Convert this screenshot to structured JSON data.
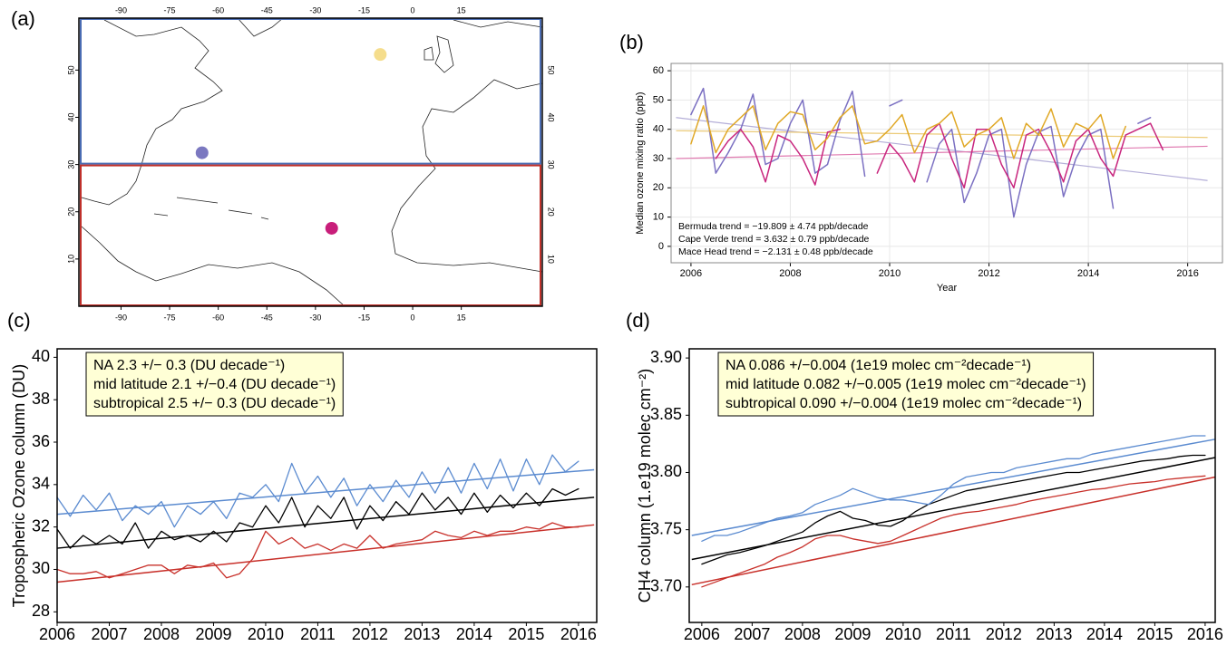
{
  "chart_data": [
    {
      "type": "map",
      "label": "(a)",
      "xlim": [
        -103,
        40
      ],
      "ylim": [
        0,
        61
      ],
      "xticks": [
        -90,
        -75,
        -60,
        -45,
        -30,
        -15,
        0,
        15
      ],
      "yticks": [
        10,
        20,
        30,
        40,
        50
      ],
      "regions": [
        {
          "color": "#4a6cb3",
          "lat": [
            30,
            61
          ]
        },
        {
          "color": "#c0302a",
          "lat": [
            0,
            30
          ]
        }
      ],
      "points": [
        {
          "x": -65,
          "y": 32.5,
          "color": "#7b78c0"
        },
        {
          "x": -25,
          "y": 16.5,
          "color": "#c81e7a"
        },
        {
          "x": -10,
          "y": 53.3,
          "color": "#f5dd8c"
        }
      ]
    },
    {
      "type": "line",
      "label": "(b)",
      "xlabel": "Year",
      "ylabel": "Median ozone mixing ratio (ppb)",
      "xlim": [
        2005.6,
        2016.7
      ],
      "ylim": [
        -5.6,
        62.5
      ],
      "xticks": [
        2006,
        2008,
        2010,
        2012,
        2014,
        2016
      ],
      "yticks": [
        0,
        10,
        20,
        30,
        40,
        50,
        60
      ],
      "grid": true,
      "legend": "bottom-left",
      "x": [
        2006,
        2006.25,
        2006.5,
        2006.75,
        2007,
        2007.25,
        2007.5,
        2007.75,
        2008,
        2008.25,
        2008.5,
        2008.75,
        2009,
        2009.25,
        2009.5,
        2009.75,
        2010,
        2010.25,
        2010.5,
        2010.75,
        2011,
        2011.25,
        2011.5,
        2011.75,
        2012,
        2012.25,
        2012.5,
        2012.75,
        2013,
        2013.25,
        2013.5,
        2013.75,
        2014,
        2014.25,
        2014.5,
        2014.75,
        2015,
        2015.25,
        2015.5,
        2015.75
      ],
      "trend_x": [
        2005.7,
        2016.4
      ],
      "series": [
        {
          "name": "Bermuda trend = −19.809 ± 4.74 ppb/decade",
          "color": "#7b70c2",
          "trend_color": "#b4aed8",
          "trend": [
            44,
            22.5
          ],
          "values": [
            45,
            54,
            25,
            32,
            40,
            52,
            28,
            30,
            42,
            50,
            25,
            28,
            43,
            53,
            24,
            null,
            48,
            50,
            null,
            22,
            35,
            40,
            15,
            25,
            38,
            40,
            10,
            28,
            39,
            41,
            17,
            30,
            38,
            40,
            13,
            null,
            42,
            44,
            null,
            26
          ]
        },
        {
          "name": "Cape Verde trend = 3.632 ± 0.79 ppb/decade",
          "color": "#c8267e",
          "trend_color": "#e07ab0",
          "trend": [
            30,
            34.2
          ],
          "values": [
            null,
            null,
            30,
            36,
            40,
            34,
            22,
            38,
            36,
            30,
            21,
            39,
            40,
            null,
            null,
            25,
            35,
            30,
            22,
            38,
            42,
            30,
            20,
            40,
            40,
            28,
            20,
            38,
            40,
            32,
            22,
            36,
            40,
            30,
            24,
            38,
            40,
            42,
            33,
            null
          ]
        },
        {
          "name": "Mace Head trend = −2.131 ± 0.48 ppb/decade",
          "color": "#e0a826",
          "trend_color": "#eccb78",
          "trend": [
            39.5,
            37.2
          ],
          "values": [
            35,
            48,
            32,
            40,
            44,
            48,
            33,
            42,
            46,
            45,
            33,
            37,
            44,
            48,
            35,
            36,
            40,
            45,
            32,
            40,
            42,
            46,
            34,
            38,
            40,
            44,
            30,
            42,
            38,
            47,
            34,
            42,
            40,
            45,
            30,
            41,
            null,
            null,
            null,
            null
          ]
        }
      ]
    },
    {
      "type": "line",
      "label": "(c)",
      "ylabel": "Tropospheric Ozone column (DU)",
      "xlim": [
        2006,
        2016.35
      ],
      "ylim": [
        27.5,
        40.4
      ],
      "xticks": [
        2006,
        2007,
        2008,
        2009,
        2010,
        2011,
        2012,
        2013,
        2014,
        2015,
        2016
      ],
      "yticks": [
        28,
        30,
        32,
        34,
        36,
        38,
        40
      ],
      "legend": "top-left",
      "x": [
        2006,
        2006.25,
        2006.5,
        2006.75,
        2007,
        2007.25,
        2007.5,
        2007.75,
        2008,
        2008.25,
        2008.5,
        2008.75,
        2009,
        2009.25,
        2009.5,
        2009.75,
        2010,
        2010.25,
        2010.5,
        2010.75,
        2011,
        2011.25,
        2011.5,
        2011.75,
        2012,
        2012.25,
        2012.5,
        2012.75,
        2013,
        2013.25,
        2013.5,
        2013.75,
        2014,
        2014.25,
        2014.5,
        2014.75,
        2015,
        2015.25,
        2015.5,
        2015.75,
        2016
      ],
      "trend_x": [
        2006,
        2016.3
      ],
      "series": [
        {
          "name": "NA 2.3 +/− 0.3 (DU decade⁻¹)",
          "color": "#000000",
          "trend_color": "#000000",
          "trend": [
            31.0,
            33.4
          ],
          "values": [
            31.9,
            31.0,
            31.6,
            31.2,
            31.6,
            31.2,
            32.2,
            31.0,
            31.8,
            31.4,
            31.6,
            31.3,
            31.8,
            31.3,
            32.2,
            32.0,
            33.0,
            32.2,
            33.4,
            32.0,
            33.0,
            32.4,
            33.4,
            31.9,
            33.0,
            32.3,
            33.2,
            32.6,
            33.6,
            32.8,
            33.4,
            32.6,
            33.6,
            32.7,
            33.5,
            32.9,
            33.6,
            33.0,
            33.8,
            33.5,
            33.8
          ]
        },
        {
          "name": "mid latitude 2.1 +/−0.4 (DU decade⁻¹)",
          "color": "#5b8bd0",
          "trend_color": "#5b8bd0",
          "trend": [
            32.6,
            34.7
          ],
          "values": [
            33.4,
            32.5,
            33.5,
            32.8,
            33.6,
            32.3,
            33.0,
            32.6,
            33.2,
            32.0,
            33.0,
            32.6,
            33.2,
            32.4,
            33.6,
            33.4,
            34.0,
            33.2,
            35.0,
            33.6,
            34.4,
            33.4,
            34.3,
            33.0,
            34.0,
            33.2,
            34.2,
            33.4,
            34.6,
            33.6,
            34.8,
            33.6,
            35.0,
            33.8,
            35.2,
            33.7,
            35.2,
            34.0,
            35.4,
            34.6,
            35.1
          ]
        },
        {
          "name": "subtropical 2.5 +/− 0.3 (DU decade⁻¹)",
          "color": "#c8302a",
          "trend_color": "#c8302a",
          "trend": [
            29.4,
            32.1
          ],
          "values": [
            30.0,
            29.8,
            29.8,
            29.9,
            29.6,
            29.8,
            30.0,
            30.2,
            30.2,
            29.8,
            30.2,
            30.1,
            30.3,
            29.6,
            29.8,
            30.5,
            31.8,
            31.2,
            31.5,
            31.0,
            31.2,
            30.9,
            31.2,
            31.0,
            31.6,
            31.0,
            31.2,
            31.3,
            31.4,
            31.8,
            31.6,
            31.5,
            31.8,
            31.6,
            31.8,
            31.8,
            32.0,
            31.9,
            32.2,
            32.0,
            32.0
          ]
        }
      ]
    },
    {
      "type": "line",
      "label": "(d)",
      "ylabel": "CH4 column (1.e19 molec cm⁻²)",
      "xlim": [
        2005.75,
        2016.2
      ],
      "ylim": [
        3.669,
        3.908
      ],
      "xticks": [
        2006,
        2007,
        2008,
        2009,
        2010,
        2011,
        2012,
        2013,
        2014,
        2015,
        2016
      ],
      "yticks": [
        {
          "value": 3.7,
          "label": "3.70"
        },
        3.75,
        {
          "value": 3.8,
          "label": "3.80"
        },
        3.85,
        {
          "value": 3.9,
          "label": "3.90"
        }
      ],
      "legend": "top-left",
      "x": [
        2006,
        2006.25,
        2006.5,
        2006.75,
        2007,
        2007.25,
        2007.5,
        2007.75,
        2008,
        2008.25,
        2008.5,
        2008.75,
        2009,
        2009.25,
        2009.5,
        2009.75,
        2010,
        2010.25,
        2010.5,
        2010.75,
        2011,
        2011.25,
        2011.5,
        2011.75,
        2012,
        2012.25,
        2012.5,
        2012.75,
        2013,
        2013.25,
        2013.5,
        2013.75,
        2014,
        2014.25,
        2014.5,
        2014.75,
        2015,
        2015.25,
        2015.5,
        2015.75,
        2016
      ],
      "trend_x": [
        2005.8,
        2016.2
      ],
      "series": [
        {
          "name": "NA 0.086 +/−0.004 (1e19 molec cm⁻²decade⁻¹)",
          "color": "#000000",
          "trend_color": "#000000",
          "trend": [
            3.724,
            3.813
          ],
          "values": [
            3.72,
            3.724,
            3.728,
            3.73,
            3.733,
            3.736,
            3.74,
            3.744,
            3.748,
            3.756,
            3.762,
            3.766,
            3.76,
            3.758,
            3.754,
            3.753,
            3.758,
            3.766,
            3.772,
            3.776,
            3.78,
            3.784,
            3.786,
            3.788,
            3.79,
            3.792,
            3.794,
            3.796,
            3.798,
            3.8,
            3.8,
            3.802,
            3.804,
            3.806,
            3.808,
            3.81,
            3.811,
            3.812,
            3.814,
            3.815,
            3.815
          ]
        },
        {
          "name": "mid latitude 0.082 +/−0.005 (1e19 molec cm⁻²decade⁻¹)",
          "color": "#5b8bd0",
          "trend_color": "#5b8bd0",
          "trend": [
            3.745,
            3.829
          ],
          "values": [
            3.74,
            3.745,
            3.745,
            3.748,
            3.752,
            3.756,
            3.76,
            3.762,
            3.765,
            3.772,
            3.776,
            3.78,
            3.786,
            3.782,
            3.778,
            3.776,
            3.776,
            3.774,
            3.772,
            3.78,
            3.79,
            3.796,
            3.798,
            3.8,
            3.8,
            3.804,
            3.806,
            3.808,
            3.81,
            3.812,
            3.812,
            3.816,
            3.818,
            3.82,
            3.822,
            3.824,
            3.826,
            3.828,
            3.83,
            3.832,
            3.832
          ]
        },
        {
          "name": "subtropical 0.090 +/−0.004 (1e19 molec cm⁻²decade⁻¹)",
          "color": "#c8302a",
          "trend_color": "#c8302a",
          "trend": [
            3.702,
            3.796
          ],
          "values": [
            3.7,
            3.704,
            3.708,
            3.712,
            3.716,
            3.72,
            3.726,
            3.73,
            3.735,
            3.742,
            3.745,
            3.745,
            3.742,
            3.74,
            3.738,
            3.74,
            3.745,
            3.75,
            3.755,
            3.76,
            3.763,
            3.765,
            3.766,
            3.768,
            3.77,
            3.772,
            3.775,
            3.777,
            3.779,
            3.781,
            3.783,
            3.785,
            3.786,
            3.788,
            3.79,
            3.791,
            3.792,
            3.794,
            3.795,
            3.796,
            3.797
          ]
        }
      ]
    }
  ]
}
